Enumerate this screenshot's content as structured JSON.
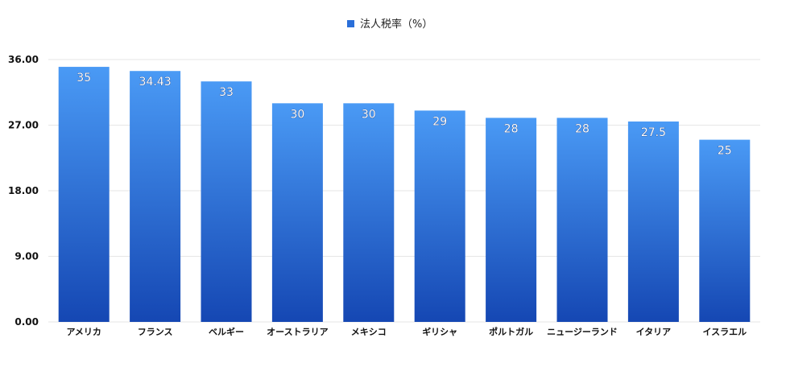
{
  "chart_data": {
    "type": "bar",
    "categories": [
      "アメリカ",
      "フランス",
      "ベルギー",
      "オーストラリア",
      "メキシコ",
      "ギリシャ",
      "ポルトガル",
      "ニュージーランド",
      "イタリア",
      "イスラエル"
    ],
    "series": [
      {
        "name": "法人税率（%）",
        "values": [
          35,
          34.43,
          33,
          30,
          30,
          29,
          28,
          28,
          27.5,
          25
        ],
        "value_labels": [
          "35",
          "34.43",
          "33",
          "30",
          "30",
          "29",
          "28",
          "28",
          "27.5",
          "25"
        ]
      }
    ],
    "y_ticks": [
      "0.00",
      "9.00",
      "18.00",
      "27.00",
      "36.00"
    ],
    "ylim": [
      0,
      36
    ],
    "grid": true,
    "legend": "top-center",
    "colors": {
      "bar_top": "#4a9af5",
      "bar_bottom": "#1547b3",
      "legend_swatch": "#2a6fd9",
      "grid": "#e6e6e6"
    }
  }
}
